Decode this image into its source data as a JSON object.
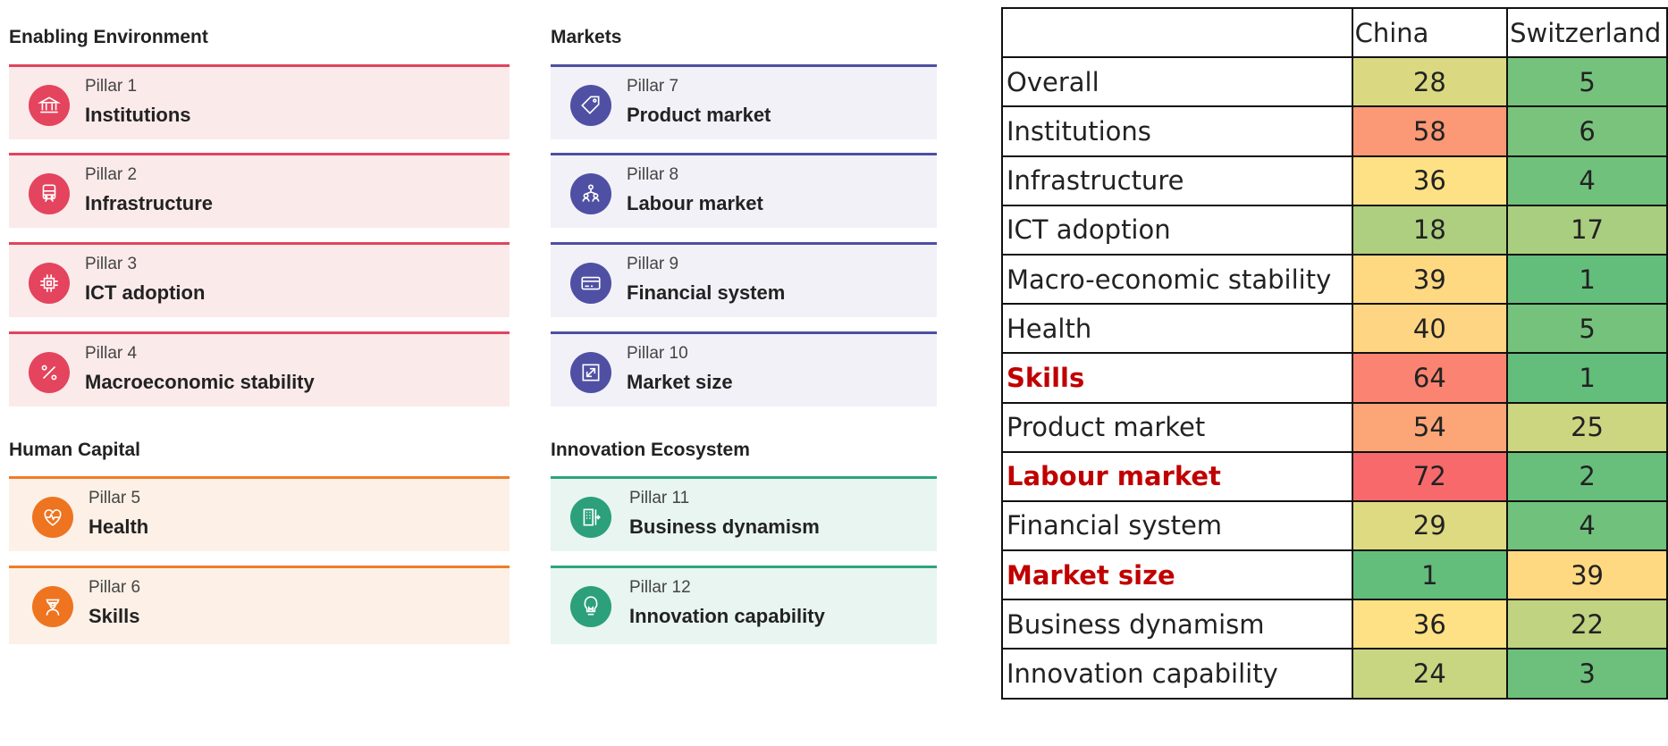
{
  "groups": [
    {
      "title": "Enabling Environment",
      "theme": "red",
      "pillars": [
        {
          "number": "Pillar 1",
          "name": "Institutions",
          "icon": "institution-icon"
        },
        {
          "number": "Pillar 2",
          "name": "Infrastructure",
          "icon": "train-icon"
        },
        {
          "number": "Pillar 3",
          "name": "ICT adoption",
          "icon": "chip-icon"
        },
        {
          "number": "Pillar 4",
          "name": "Macroeconomic stability",
          "icon": "percent-icon"
        }
      ]
    },
    {
      "title": "Markets",
      "theme": "blue",
      "pillars": [
        {
          "number": "Pillar 7",
          "name": "Product market",
          "icon": "tag-icon"
        },
        {
          "number": "Pillar 8",
          "name": "Labour market",
          "icon": "people-network-icon"
        },
        {
          "number": "Pillar 9",
          "name": "Financial system",
          "icon": "credit-card-icon"
        },
        {
          "number": "Pillar 10",
          "name": "Market size",
          "icon": "expand-icon"
        }
      ]
    },
    {
      "title": "Human Capital",
      "theme": "orange",
      "pillars": [
        {
          "number": "Pillar 5",
          "name": "Health",
          "icon": "heart-pulse-icon"
        },
        {
          "number": "Pillar 6",
          "name": "Skills",
          "icon": "graduate-icon"
        }
      ]
    },
    {
      "title": "Innovation Ecosystem",
      "theme": "green",
      "pillars": [
        {
          "number": "Pillar 11",
          "name": "Business dynamism",
          "icon": "building-arrow-icon"
        },
        {
          "number": "Pillar 12",
          "name": "Innovation capability",
          "icon": "lightbulb-icon"
        }
      ]
    }
  ],
  "colors": {
    "enabling_environment": "#e4445d",
    "markets": "#4f50a3",
    "human_capital": "#ee7420",
    "innovation_ecosystem": "#2ba07a",
    "highlight_text": "#c00000"
  },
  "chart_data": {
    "type": "table",
    "columns": [
      "China",
      "Switzerland"
    ],
    "rows": [
      {
        "label": "Overall",
        "values": [
          28,
          5
        ],
        "highlight": false
      },
      {
        "label": "Institutions",
        "values": [
          58,
          6
        ],
        "highlight": false
      },
      {
        "label": "Infrastructure",
        "values": [
          36,
          4
        ],
        "highlight": false
      },
      {
        "label": "ICT adoption",
        "values": [
          18,
          17
        ],
        "highlight": false
      },
      {
        "label": "Macro-economic stability",
        "values": [
          39,
          1
        ],
        "highlight": false
      },
      {
        "label": "Health",
        "values": [
          40,
          5
        ],
        "highlight": false
      },
      {
        "label": "Skills",
        "values": [
          64,
          1
        ],
        "highlight": true
      },
      {
        "label": "Product market",
        "values": [
          54,
          25
        ],
        "highlight": false
      },
      {
        "label": "Labour market",
        "values": [
          72,
          2
        ],
        "highlight": true
      },
      {
        "label": "Financial system",
        "values": [
          29,
          4
        ],
        "highlight": false
      },
      {
        "label": "Market size",
        "values": [
          1,
          39
        ],
        "highlight": true
      },
      {
        "label": "Business dynamism",
        "values": [
          36,
          22
        ],
        "highlight": false
      },
      {
        "label": "Innovation capability",
        "values": [
          24,
          3
        ],
        "highlight": false
      }
    ],
    "color_scale": {
      "low_rank": "#63be7b",
      "mid_rank": "#ffe184",
      "high_rank": "#f8696b",
      "min": 1,
      "max": 72
    }
  }
}
